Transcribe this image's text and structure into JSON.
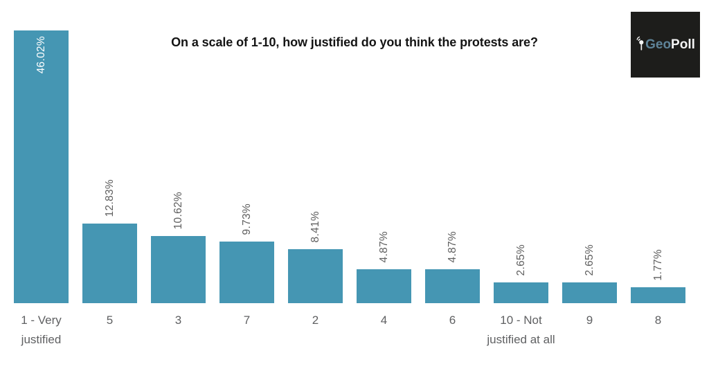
{
  "chart_data": {
    "type": "bar",
    "title": "On a scale of 1-10, how justified do you think the protests are?",
    "categories": [
      "1 - Very justified",
      "5",
      "3",
      "7",
      "2",
      "4",
      "6",
      "10 - Not justified at all",
      "9",
      "8"
    ],
    "values": [
      46.02,
      12.83,
      10.62,
      9.73,
      8.41,
      4.87,
      4.87,
      2.65,
      2.65,
      1.77
    ],
    "value_labels": [
      "46.02%",
      "12.83%",
      "10.62%",
      "9.73%",
      "8.41%",
      "4.87%",
      "4.87%",
      "2.65%",
      "2.65%",
      "1.77%"
    ],
    "xlabel": "",
    "ylabel": "",
    "ylim": [
      0,
      50
    ],
    "grid": false,
    "legend": false,
    "value_label_rotation": "vertical-bottom-to-top",
    "first_value_label_inside_bar": true,
    "bar_color": "#4596b3",
    "value_label_color": "#5f5f5f",
    "value_label_inside_color": "#ffffff",
    "category_label_color": "#5f6062",
    "title_color": "#141414"
  },
  "logo": {
    "geo": "Geo",
    "poll": "Poll",
    "background": "#1d1d1b",
    "geo_color": "#5e8398",
    "poll_color": "#f5f5f5",
    "icon": "geopoll-pin-signal-icon",
    "icon_color": "#f5f5f5"
  }
}
